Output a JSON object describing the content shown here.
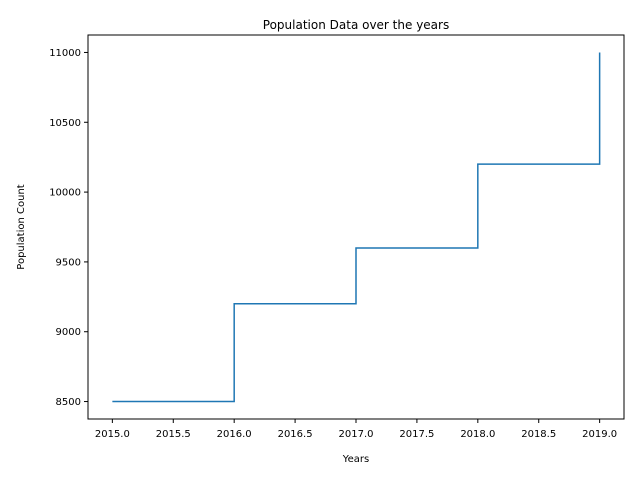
{
  "chart_data": {
    "type": "line",
    "drawstyle": "steps-post",
    "title": "Population Data over the years",
    "xlabel": "Years",
    "ylabel": "Population Count",
    "x": [
      2015,
      2016,
      2017,
      2018,
      2019
    ],
    "series": [
      {
        "values": [
          8500,
          9200,
          9600,
          10200,
          11000
        ],
        "color": "#1f77b4"
      }
    ],
    "xlim": [
      2014.8,
      2019.2
    ],
    "ylim": [
      8375,
      11125
    ],
    "xticks": [
      2015.0,
      2015.5,
      2016.0,
      2016.5,
      2017.0,
      2017.5,
      2018.0,
      2018.5,
      2019.0
    ],
    "xtick_labels": [
      "2015.0",
      "2015.5",
      "2016.0",
      "2016.5",
      "2017.0",
      "2017.5",
      "2018.0",
      "2018.5",
      "2019.0"
    ],
    "yticks": [
      8500,
      9000,
      9500,
      10000,
      10500,
      11000
    ],
    "ytick_labels": [
      "8500",
      "9000",
      "9500",
      "10000",
      "10500",
      "11000"
    ],
    "grid": false,
    "legend": "none"
  }
}
